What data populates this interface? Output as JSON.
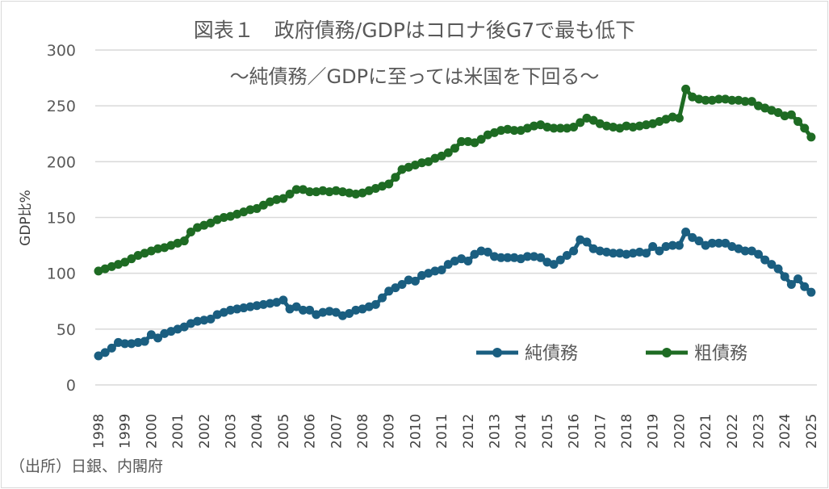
{
  "chart_data": {
    "type": "line",
    "title": "図表１　政府債務/GDPはコロナ後G7で最も低下",
    "subtitle": "～純債務／GDPに至っては米国を下回る～",
    "ylabel": "GDP比%",
    "xlabel": "",
    "ylim": [
      0,
      300
    ],
    "yticks": [
      0,
      50,
      100,
      150,
      200,
      250,
      300
    ],
    "xticks": [
      "1998",
      "1999",
      "2000",
      "2001",
      "2002",
      "2003",
      "2004",
      "2005",
      "2006",
      "2007",
      "2008",
      "2009",
      "2010",
      "2011",
      "2012",
      "2013",
      "2014",
      "2015",
      "2016",
      "2017",
      "2018",
      "2019",
      "2020",
      "2021",
      "2022",
      "2023",
      "2024",
      "2025"
    ],
    "frequency": "quarterly",
    "x_start": "1998Q1",
    "grid": true,
    "legend": "bottom-right",
    "series": [
      {
        "name": "純債務",
        "color": "#1a5e80",
        "values": [
          26,
          29,
          33,
          38,
          37,
          37,
          38,
          39,
          45,
          42,
          46,
          48,
          50,
          52,
          55,
          57,
          58,
          59,
          63,
          65,
          67,
          68,
          69,
          70,
          71,
          72,
          73,
          74,
          76,
          68,
          70,
          67,
          67,
          63,
          65,
          66,
          65,
          62,
          64,
          67,
          68,
          70,
          72,
          78,
          84,
          87,
          90,
          94,
          93,
          98,
          100,
          102,
          103,
          108,
          111,
          113,
          111,
          117,
          120,
          119,
          115,
          114,
          114,
          114,
          113,
          115,
          115,
          114,
          110,
          108,
          112,
          116,
          120,
          130,
          128,
          122,
          120,
          119,
          118,
          118,
          117,
          118,
          119,
          118,
          124,
          120,
          124,
          125,
          125,
          137,
          132,
          129,
          125,
          127,
          127,
          127,
          124,
          122,
          120,
          120,
          117,
          112,
          108,
          104,
          97,
          90,
          95,
          88,
          83
        ]
      },
      {
        "name": "粗債務",
        "color": "#1e6b23",
        "values": [
          102,
          104,
          106,
          108,
          110,
          113,
          116,
          118,
          120,
          122,
          123,
          125,
          127,
          129,
          137,
          141,
          143,
          145,
          148,
          150,
          151,
          153,
          155,
          157,
          158,
          161,
          164,
          166,
          167,
          171,
          175,
          175,
          173,
          173,
          174,
          173,
          174,
          173,
          172,
          171,
          172,
          174,
          176,
          178,
          180,
          186,
          193,
          195,
          197,
          199,
          200,
          203,
          205,
          208,
          212,
          218,
          218,
          217,
          220,
          224,
          226,
          228,
          229,
          228,
          228,
          230,
          232,
          233,
          231,
          230,
          230,
          230,
          231,
          235,
          239,
          237,
          234,
          232,
          231,
          230,
          232,
          231,
          232,
          233,
          234,
          236,
          238,
          240,
          239,
          265,
          258,
          256,
          255,
          255,
          256,
          256,
          255,
          255,
          254,
          254,
          250,
          248,
          246,
          244,
          241,
          242,
          236,
          230,
          222
        ]
      }
    ]
  },
  "footer": {
    "source": "（出所）日銀、内閣府"
  }
}
